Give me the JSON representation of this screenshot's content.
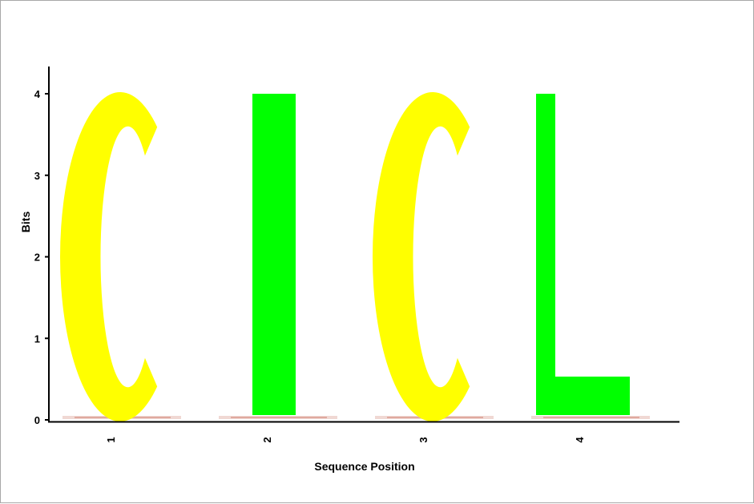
{
  "chart_data": {
    "type": "sequence-logo",
    "xlabel": "Sequence Position",
    "ylabel": "Bits",
    "ylim": [
      0,
      4
    ],
    "yticks": [
      0,
      1,
      2,
      3,
      4
    ],
    "positions": [
      "1",
      "2",
      "3",
      "4"
    ],
    "letters": [
      {
        "position": "1",
        "letter": "C",
        "bits": 4.0,
        "color": "#ffff00"
      },
      {
        "position": "2",
        "letter": "I",
        "bits": 4.0,
        "color": "#00ff00"
      },
      {
        "position": "3",
        "letter": "C",
        "bits": 4.0,
        "color": "#ffff00"
      },
      {
        "position": "4",
        "letter": "L",
        "bits": 4.0,
        "color": "#00ff00"
      }
    ],
    "grid": false
  }
}
